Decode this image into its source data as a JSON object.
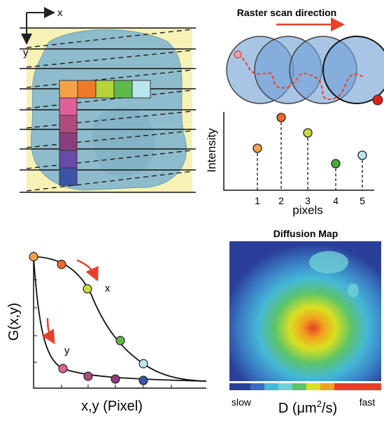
{
  "raster_panel": {
    "x_axis": "x",
    "y_axis": "y"
  },
  "scan_panel": {
    "title": "Raster scan direction",
    "y_label": "Intensity",
    "x_label": "pixels",
    "x_ticks": [
      "1",
      "2",
      "3",
      "4",
      "5"
    ]
  },
  "correlation_panel": {
    "y_label": "G(x,y)",
    "x_label": "x,y (Pixel)",
    "curve_x": "x",
    "curve_y": "y"
  },
  "map_panel": {
    "title": "Diffusion Map",
    "low": "slow",
    "high": "fast",
    "unit_main": "D (μm",
    "unit_sup": "2",
    "unit_tail": "/s)"
  }
}
